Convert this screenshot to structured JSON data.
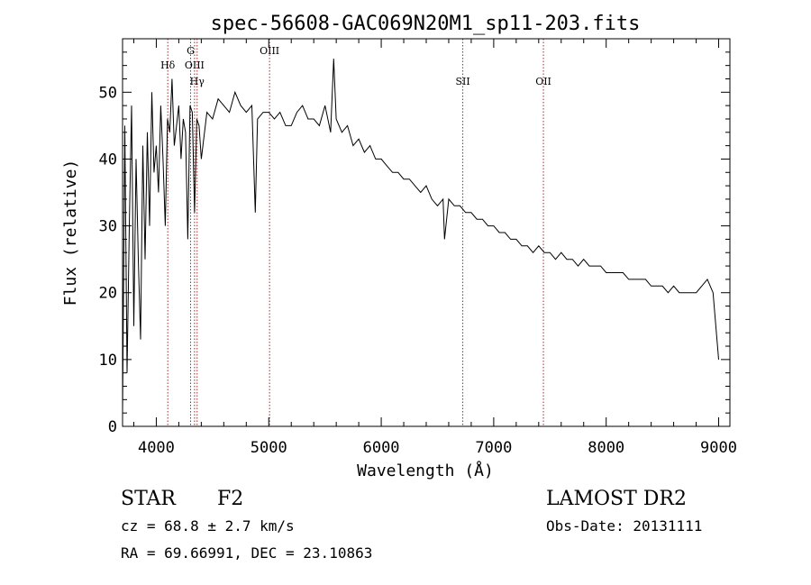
{
  "chart_data": {
    "type": "line",
    "title": "spec-56608-GAC069N20M1_sp11-203.fits",
    "xlabel": "Wavelength (Å)",
    "ylabel": "Flux (relative)",
    "xlim": [
      3700,
      9100
    ],
    "ylim": [
      0,
      58
    ],
    "xticks": [
      4000,
      5000,
      6000,
      7000,
      8000,
      9000
    ],
    "yticks": [
      0,
      10,
      20,
      30,
      40,
      50
    ],
    "grid": false,
    "line_color": "#000000",
    "spectral_lines": [
      {
        "label": "Hδ",
        "x": 4102,
        "level": 1
      },
      {
        "label": "G",
        "x": 4305,
        "level": 0
      },
      {
        "label": "OIII",
        "x": 4340,
        "level": 1
      },
      {
        "label": "Hγ",
        "x": 4363,
        "level": 2
      },
      {
        "label": "OIII",
        "x": 5007,
        "level": 0
      },
      {
        "label": "SII",
        "x": 6725,
        "level": 2
      },
      {
        "label": "OII",
        "x": 7442,
        "level": 2
      }
    ],
    "line_marker_color": "#a52a2a",
    "series": [
      {
        "x": [
          3700,
          3720,
          3740,
          3760,
          3780,
          3800,
          3820,
          3840,
          3860,
          3880,
          3900,
          3920,
          3940,
          3960,
          3980,
          4000,
          4020,
          4040,
          4060,
          4080,
          4100,
          4120,
          4140,
          4160,
          4180,
          4200,
          4220,
          4240,
          4260,
          4280,
          4300,
          4320,
          4340,
          4360,
          4380,
          4400,
          4450,
          4500,
          4550,
          4600,
          4650,
          4700,
          4750,
          4800,
          4850,
          4880,
          4900,
          4950,
          5000,
          5050,
          5100,
          5150,
          5200,
          5250,
          5300,
          5350,
          5400,
          5450,
          5500,
          5550,
          5577,
          5600,
          5650,
          5700,
          5750,
          5800,
          5850,
          5900,
          5950,
          6000,
          6050,
          6100,
          6150,
          6200,
          6250,
          6300,
          6350,
          6400,
          6450,
          6500,
          6550,
          6563,
          6600,
          6650,
          6700,
          6750,
          6800,
          6850,
          6900,
          6950,
          7000,
          7050,
          7100,
          7150,
          7200,
          7250,
          7300,
          7350,
          7400,
          7450,
          7500,
          7550,
          7600,
          7650,
          7700,
          7750,
          7800,
          7850,
          7900,
          7950,
          8000,
          8050,
          8100,
          8150,
          8200,
          8250,
          8300,
          8350,
          8400,
          8450,
          8500,
          8550,
          8600,
          8650,
          8700,
          8750,
          8800,
          8850,
          8900,
          8950,
          9000
        ],
        "values": [
          2,
          45,
          8,
          30,
          48,
          15,
          40,
          25,
          13,
          42,
          25,
          44,
          30,
          50,
          38,
          42,
          35,
          48,
          40,
          30,
          46,
          44,
          52,
          42,
          45,
          48,
          40,
          46,
          44,
          28,
          48,
          47,
          32,
          46,
          45,
          40,
          47,
          46,
          49,
          48,
          47,
          50,
          48,
          47,
          48,
          32,
          46,
          47,
          47,
          46,
          47,
          45,
          45,
          47,
          48,
          46,
          46,
          45,
          48,
          44,
          55,
          46,
          44,
          45,
          42,
          43,
          41,
          42,
          40,
          40,
          39,
          38,
          38,
          37,
          37,
          36,
          35,
          36,
          34,
          33,
          34,
          28,
          34,
          33,
          33,
          32,
          32,
          31,
          31,
          30,
          30,
          29,
          29,
          28,
          28,
          27,
          27,
          26,
          27,
          26,
          26,
          25,
          26,
          25,
          25,
          24,
          25,
          24,
          24,
          24,
          23,
          23,
          23,
          23,
          22,
          22,
          22,
          22,
          21,
          21,
          21,
          20,
          21,
          20,
          20,
          20,
          20,
          21,
          22,
          20,
          10
        ]
      }
    ]
  },
  "footer": {
    "object_class": "STAR",
    "subclass": "F2",
    "cz": "cz = 68.8 ± 2.7 km/s",
    "coords": "RA =  69.66991, DEC =  23.10863",
    "survey": "LAMOST DR2",
    "obs_date": "Obs-Date: 20131111"
  }
}
